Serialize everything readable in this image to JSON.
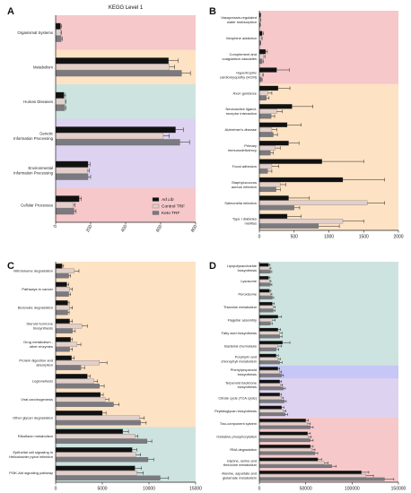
{
  "figure": {
    "series_names": [
      "Ad Lib",
      "Control TRF",
      "Keto TRF"
    ],
    "series_colors": [
      "#111111",
      "#e3cfc9",
      "#7a7a80"
    ],
    "band_colors": {
      "pink": "#f6c8ca",
      "orange": "#fde2c4",
      "teal": "#cde3df",
      "purple": "#ddd3f0",
      "lavender": "#c6c6f7"
    }
  },
  "chart_data": [
    {
      "panel_label": "A",
      "type": "bar",
      "orientation": "horizontal",
      "title": "KEGG Level 1",
      "categories": [
        "Organismal Systems",
        "Metabolism",
        "Human Diseases",
        "Genetic\nInformation Processing",
        "Environmental\nInformation Processing",
        "Cellular Processes"
      ],
      "series": [
        {
          "name": "Ad Lib",
          "values": [
            28,
            645,
            48,
            685,
            185,
            135
          ]
        },
        {
          "name": "Control TRF",
          "values": [
            28,
            650,
            52,
            615,
            180,
            100
          ]
        },
        {
          "name": "Keto TRF",
          "values": [
            32,
            720,
            52,
            710,
            185,
            105
          ]
        }
      ],
      "errors": [
        [
          5,
          55,
          8,
          45,
          12,
          12
        ],
        [
          5,
          30,
          6,
          35,
          12,
          10
        ],
        [
          6,
          50,
          6,
          55,
          15,
          12
        ]
      ],
      "xlim": [
        0,
        800
      ],
      "xticks": [
        0,
        200,
        400,
        600,
        800
      ],
      "band_colors": [
        "pink",
        "orange",
        "teal",
        "purple",
        "purple",
        "pink"
      ],
      "legend": {
        "position": "lower-right"
      }
    },
    {
      "panel_label": "B",
      "type": "bar",
      "orientation": "horizontal",
      "categories": [
        "Vasopressin-regulated\nwater reabsorption",
        "Morphine addiction",
        "Complement and\ncoagulation cascades",
        "Hypertrophic\ncardiomyopathy (HCM)",
        "Axon guidance",
        "Neuroactive ligand-\nreceptor interaction",
        "Alzheimer's disease",
        "Primary\nimmunodeficiency",
        "Focal adhesion",
        "Staphylococcus\naureus infection",
        "Salmonella infection",
        "Type I diabetes\nmellitus"
      ],
      "series": [
        {
          "name": "Ad Lib",
          "values": [
            15,
            40,
            90,
            250,
            270,
            470,
            400,
            420,
            900,
            1200,
            420,
            400
          ]
        },
        {
          "name": "Control TRF",
          "values": [
            15,
            30,
            60,
            40,
            120,
            250,
            180,
            230,
            180,
            300,
            1550,
            1200
          ]
        },
        {
          "name": "Keto TRF",
          "values": [
            10,
            15,
            40,
            30,
            100,
            170,
            200,
            160,
            120,
            240,
            500,
            850
          ]
        }
      ],
      "errors": [
        [
          5,
          15,
          25,
          180,
          170,
          300,
          200,
          150,
          600,
          600,
          300,
          200
        ],
        [
          5,
          10,
          20,
          15,
          60,
          80,
          70,
          70,
          100,
          80,
          250,
          300
        ],
        [
          5,
          5,
          15,
          10,
          40,
          50,
          60,
          40,
          60,
          60,
          80,
          300
        ]
      ],
      "xlim": [
        0,
        2000
      ],
      "xticks": [
        0,
        500,
        1000,
        1500,
        2000
      ],
      "band_colors": [
        "pink",
        "pink",
        "pink",
        "pink",
        "orange",
        "orange",
        "orange",
        "orange",
        "orange",
        "orange",
        "orange",
        "orange"
      ]
    },
    {
      "panel_label": "C",
      "type": "bar",
      "orientation": "horizontal",
      "categories": [
        "Nitrotoluene degradation",
        "Pathways in cancer",
        "Benzoate degradation",
        "Steroid hormone\nbiosynthesis",
        "Drug metabolism -\nother enzymes",
        "Protein digestion and\nabsorption",
        "Legionellosis",
        "Viral carcinogenesis",
        "Other glycan degradation",
        "Riboflavin metabolism",
        "Epithelial cell signaling in\nHelicobacter pylori infection",
        "PI3K-Akt signaling pathway"
      ],
      "series": [
        {
          "name": "Ad Lib",
          "values": [
            700,
            1200,
            1300,
            1500,
            1600,
            1700,
            3400,
            4800,
            5000,
            7200,
            8200,
            8500
          ]
        },
        {
          "name": "Control TRF",
          "values": [
            2000,
            1500,
            1500,
            2800,
            2300,
            4700,
            4100,
            5300,
            9000,
            8500,
            8600,
            8700
          ]
        },
        {
          "name": "Keto TRF",
          "values": [
            1400,
            1400,
            1300,
            1800,
            1500,
            2700,
            4700,
            6200,
            9100,
            9800,
            9900,
            11200
          ]
        }
      ],
      "errors": [
        [
          150,
          200,
          150,
          300,
          200,
          300,
          300,
          300,
          400,
          600,
          500,
          700
        ],
        [
          500,
          300,
          300,
          600,
          400,
          800,
          400,
          400,
          500,
          300,
          500,
          700
        ],
        [
          200,
          200,
          150,
          300,
          300,
          400,
          500,
          600,
          600,
          500,
          600,
          900
        ]
      ],
      "xlim": [
        0,
        15000
      ],
      "xticks": [
        0,
        5000,
        10000,
        15000
      ],
      "band_colors": [
        "orange",
        "orange",
        "orange",
        "orange",
        "orange",
        "orange",
        "orange",
        "orange",
        "orange",
        "teal",
        "teal",
        "teal"
      ]
    },
    {
      "panel_label": "D",
      "type": "bar",
      "orientation": "horizontal",
      "categories": [
        "Lipopolysaccharide\nbiosynthesis",
        "Lysosome",
        "Peroxisome",
        "Thiamine metabolism",
        "Flagellar assembly",
        "Fatty acid biosynthesis",
        "Bacterial chemotaxis",
        "Porphyrin and\nchlorophyll metabolism",
        "Phenylpropanoid\nbiosynthesis",
        "Terpenoid backbone\nbiosynthesis",
        "Citrate cycle (TCA cycle)",
        "Peptidoglycan biosynthesis",
        "Two-component system",
        "Oxidative phosphorylation",
        "RNA degradation",
        "Glycine, serine and\nthreonine metabolism",
        "Alanine, aspartate and\nglutamate metabolism"
      ],
      "series": [
        {
          "name": "Ad Lib",
          "values": [
            10000,
            10000,
            11000,
            14000,
            20000,
            20000,
            25000,
            18000,
            20000,
            22000,
            22000,
            24000,
            50000,
            52000,
            55000,
            63000,
            110000
          ]
        },
        {
          "name": "Control TRF",
          "values": [
            11000,
            11000,
            12000,
            15000,
            14000,
            22000,
            20000,
            20000,
            22000,
            23000,
            24000,
            26000,
            52000,
            53000,
            57000,
            70000,
            115000
          ]
        },
        {
          "name": "Keto TRF",
          "values": [
            12000,
            12000,
            14000,
            15000,
            12000,
            22000,
            18000,
            22000,
            24000,
            26000,
            27000,
            28000,
            55000,
            55000,
            60000,
            78000,
            135000
          ]
        }
      ],
      "errors": [
        [
          1500,
          1500,
          1500,
          2000,
          4000,
          3000,
          8000,
          2500,
          2000,
          2000,
          2000,
          2500,
          3000,
          3000,
          3000,
          4000,
          8000
        ],
        [
          1500,
          1500,
          1500,
          2000,
          3000,
          2500,
          4000,
          2500,
          2000,
          2000,
          2000,
          2500,
          3000,
          3000,
          3000,
          4000,
          8000
        ],
        [
          1500,
          1500,
          1500,
          2000,
          2000,
          2500,
          3000,
          2500,
          2000,
          2000,
          2000,
          2500,
          3000,
          3000,
          3000,
          5000,
          10000
        ]
      ],
      "xlim": [
        0,
        150000
      ],
      "xticks": [
        0,
        50000,
        100000,
        150000
      ],
      "band_colors": [
        "teal",
        "teal",
        "teal",
        "teal",
        "teal",
        "teal",
        "teal",
        "teal",
        "lavender",
        "purple",
        "purple",
        "purple",
        "pink",
        "pink",
        "pink",
        "pink",
        "pink"
      ]
    }
  ]
}
